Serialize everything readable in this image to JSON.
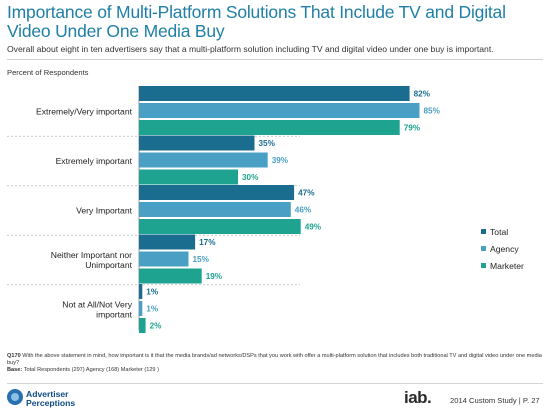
{
  "header": {
    "title": "Importance of Multi-Platform Solutions That Include TV and Digital Video Under One Media Buy",
    "subtitle": "Overall about eight in ten advertisers say that a multi-platform solution including TV and digital video under one buy is important."
  },
  "chart_data": {
    "type": "bar",
    "orientation": "horizontal",
    "ylabel": "Percent of Respondents",
    "categories": [
      "Extremely/Very important",
      "Extremely important",
      "Very Important",
      "Neither Important nor Unimportant",
      "Not at All/Not Very important"
    ],
    "series": [
      {
        "name": "Total",
        "values": [
          82,
          35,
          47,
          17,
          1
        ],
        "labels": [
          "82%",
          "35%",
          "47%",
          "17%",
          "1%"
        ]
      },
      {
        "name": "Agency",
        "values": [
          85,
          39,
          46,
          15,
          1
        ],
        "labels": [
          "85%",
          "39%",
          "46%",
          "15%",
          "1%"
        ]
      },
      {
        "name": "Marketer",
        "values": [
          79,
          30,
          49,
          19,
          2
        ],
        "labels": [
          "79%",
          "30%",
          "49%",
          "19%",
          "2%"
        ]
      }
    ],
    "xlim": [
      0,
      100
    ],
    "legend": "right",
    "colors": {
      "Total": "#1a6d8f",
      "Agency": "#4aa0c4",
      "Marketer": "#1fa391"
    }
  },
  "footnote": {
    "question_prefix": "Q170",
    "question": "With the above statement in mind, how important is it that the media brands/ad networks/DSPs that you work with offer a multi-platform solution that includes both traditional TV and digital video under one media buy?",
    "base_prefix": "Base:",
    "base": "Total Respondents (297) Agency (168) Marketer (129 )"
  },
  "footer": {
    "logo_line1": "Advertiser",
    "logo_line2": "Perceptions",
    "iab_logo": "iab.",
    "study": "2014 Custom Study | P. 27"
  }
}
